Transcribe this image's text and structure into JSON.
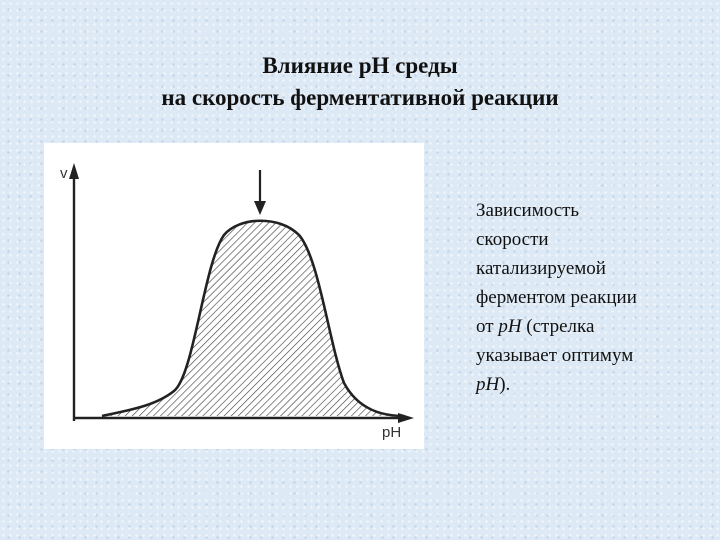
{
  "title": {
    "line1": "Влияние pH среды",
    "line2": "на скорость ферментативной реакции"
  },
  "figure": {
    "y_axis_label": "v",
    "x_axis_label": "pH",
    "optimum_marker_icon": "down-arrow"
  },
  "caption": {
    "lines": [
      "Зависимость",
      "скорости",
      "катализируемой",
      "ферментом реакции"
    ],
    "line5_prefix": "от ",
    "line5_italic": "pH",
    "line5_suffix": " (стрелка",
    "line6": "указывает оптимум",
    "line7_italic": "pH",
    "line7_suffix": ")."
  },
  "colors": {
    "background": "#dde9f5",
    "ink": "#222222"
  }
}
